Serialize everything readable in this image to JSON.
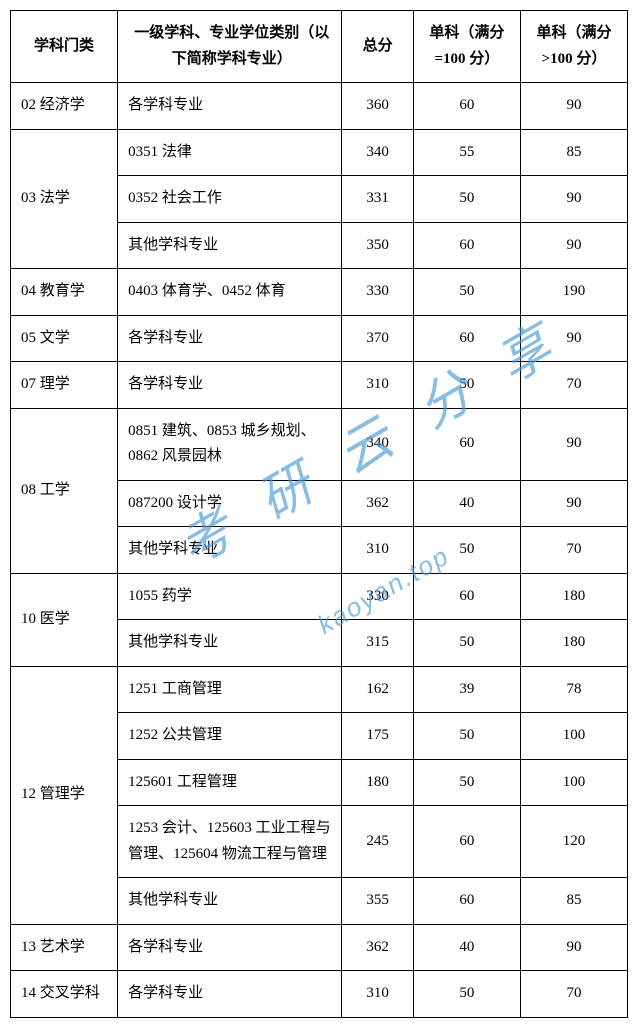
{
  "headers": {
    "category": "学科门类",
    "major": "一级学科、专业学位类别（以下简称学科专业）",
    "total": "总分",
    "subject100": "单科（满分=100 分）",
    "subject_over100": "单科（满分>100 分）"
  },
  "watermark": {
    "text1": "考研云分享",
    "text2": "kaoyan.top"
  },
  "rows": [
    {
      "category": "02 经济学",
      "rowspan": 1,
      "entries": [
        {
          "major": "各学科专业",
          "total": "360",
          "s100": "60",
          "s_over": "90"
        }
      ]
    },
    {
      "category": "03 法学",
      "rowspan": 3,
      "entries": [
        {
          "major": "0351 法律",
          "total": "340",
          "s100": "55",
          "s_over": "85"
        },
        {
          "major": "0352 社会工作",
          "total": "331",
          "s100": "50",
          "s_over": "90"
        },
        {
          "major": "其他学科专业",
          "total": "350",
          "s100": "60",
          "s_over": "90"
        }
      ]
    },
    {
      "category": "04 教育学",
      "rowspan": 1,
      "entries": [
        {
          "major": "0403 体育学、0452 体育",
          "total": "330",
          "s100": "50",
          "s_over": "190"
        }
      ]
    },
    {
      "category": "05 文学",
      "rowspan": 1,
      "entries": [
        {
          "major": "各学科专业",
          "total": "370",
          "s100": "60",
          "s_over": "90"
        }
      ]
    },
    {
      "category": "07 理学",
      "rowspan": 1,
      "entries": [
        {
          "major": "各学科专业",
          "total": "310",
          "s100": "50",
          "s_over": "70"
        }
      ]
    },
    {
      "category": "08 工学",
      "rowspan": 3,
      "entries": [
        {
          "major": "0851 建筑、0853 城乡规划、0862 风景园林",
          "total": "340",
          "s100": "60",
          "s_over": "90"
        },
        {
          "major": "087200 设计学",
          "total": "362",
          "s100": "40",
          "s_over": "90"
        },
        {
          "major": "其他学科专业",
          "total": "310",
          "s100": "50",
          "s_over": "70"
        }
      ]
    },
    {
      "category": "10 医学",
      "rowspan": 2,
      "entries": [
        {
          "major": "1055 药学",
          "total": "330",
          "s100": "60",
          "s_over": "180"
        },
        {
          "major": "其他学科专业",
          "total": "315",
          "s100": "50",
          "s_over": "180"
        }
      ]
    },
    {
      "category": "12 管理学",
      "rowspan": 5,
      "entries": [
        {
          "major": "1251 工商管理",
          "total": "162",
          "s100": "39",
          "s_over": "78"
        },
        {
          "major": "1252 公共管理",
          "total": "175",
          "s100": "50",
          "s_over": "100"
        },
        {
          "major": "125601 工程管理",
          "total": "180",
          "s100": "50",
          "s_over": "100"
        },
        {
          "major": "1253 会计、125603 工业工程与管理、125604 物流工程与管理",
          "total": "245",
          "s100": "60",
          "s_over": "120"
        },
        {
          "major": "其他学科专业",
          "total": "355",
          "s100": "60",
          "s_over": "85"
        }
      ]
    },
    {
      "category": "13 艺术学",
      "rowspan": 1,
      "entries": [
        {
          "major": "各学科专业",
          "total": "362",
          "s100": "40",
          "s_over": "90"
        }
      ]
    },
    {
      "category": "14 交叉学科",
      "rowspan": 1,
      "entries": [
        {
          "major": "各学科专业",
          "total": "310",
          "s100": "50",
          "s_over": "70"
        }
      ]
    }
  ]
}
